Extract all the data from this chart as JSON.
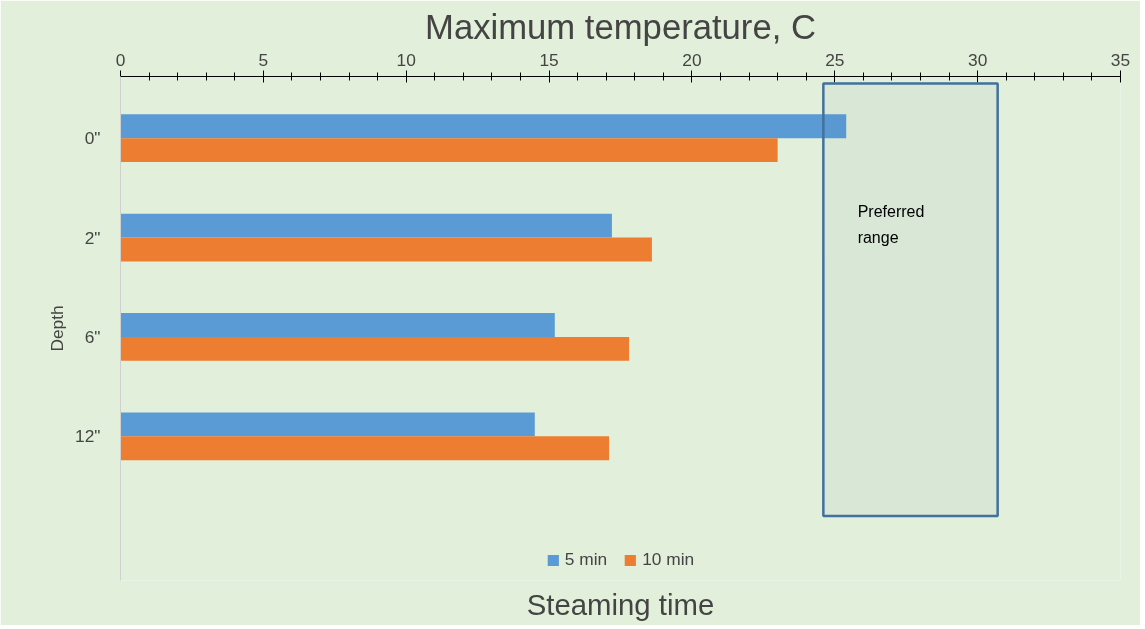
{
  "chart_data": {
    "type": "bar",
    "orientation": "horizontal",
    "title": "Maximum temperature, C",
    "ylabel": "Depth",
    "legend_title": "Steaming time",
    "categories": [
      "0\"",
      "2\"",
      "6\"",
      "12\""
    ],
    "series": [
      {
        "name": "5 min",
        "color": "#5b9bd5",
        "values": [
          25.4,
          17.2,
          15.2,
          14.5
        ]
      },
      {
        "name": "10 min",
        "color": "#ed7d31",
        "values": [
          23.0,
          18.6,
          17.8,
          17.1
        ]
      }
    ],
    "xlim": [
      0,
      35
    ],
    "xticks": [
      0,
      5,
      10,
      15,
      20,
      25,
      30,
      35
    ],
    "bands": [
      {
        "axis": "x",
        "from": 24.6,
        "to": 30.7,
        "label": "Preferred range",
        "color": "#41719c"
      }
    ],
    "grid": false,
    "legend": "bottom"
  }
}
